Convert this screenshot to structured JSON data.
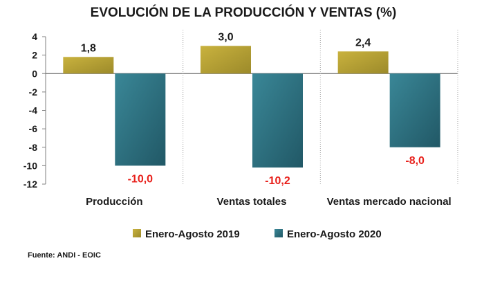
{
  "chart_data": {
    "type": "bar",
    "title": "EVOLUCIÓN DE LA PRODUCCIÓN Y VENTAS (%)",
    "categories": [
      "Producción",
      "Ventas totales",
      "Ventas mercado nacional"
    ],
    "series": [
      {
        "name": "Enero-Agosto 2019",
        "values": [
          1.8,
          3.0,
          2.4
        ],
        "labels": [
          "1,8",
          "3,0",
          "2,4"
        ],
        "color": "#b8a030"
      },
      {
        "name": "Enero-Agosto 2020",
        "values": [
          -10.0,
          -10.2,
          -8.0
        ],
        "labels": [
          "-10,0",
          "-10,2",
          "-8,0"
        ],
        "color": "#2e7585"
      }
    ],
    "ylim": [
      -12,
      4
    ],
    "yticks": [
      4,
      2,
      0,
      -2,
      -4,
      -6,
      -8,
      -10,
      -12
    ],
    "negative_label_color": "#e8201b",
    "legend_position": "bottom",
    "grid": false,
    "source": "Fuente: ANDI - EOIC"
  }
}
